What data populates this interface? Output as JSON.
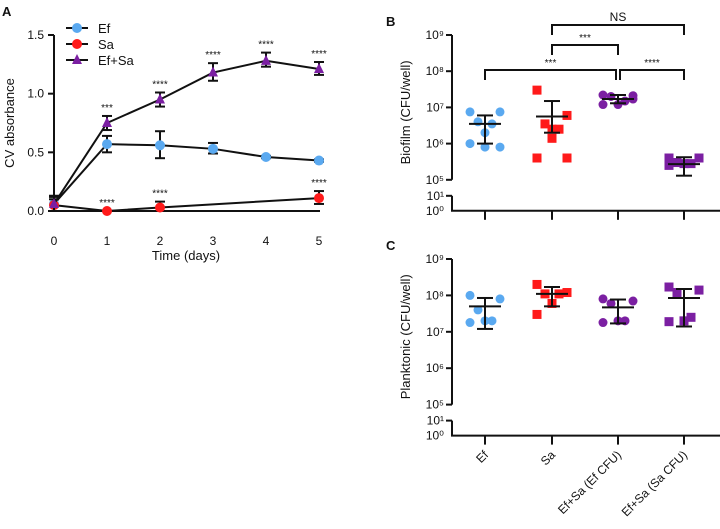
{
  "chart_data": [
    {
      "panel": "A",
      "type": "line",
      "xlabel": "Time (days)",
      "ylabel": "CV absorbance",
      "x": [
        0,
        1,
        2,
        3,
        4,
        5
      ],
      "ylim": [
        0,
        1.5
      ],
      "yticks": [
        "0.0",
        "0.5",
        "1.0",
        "1.5"
      ],
      "legend_position": "top-left",
      "series": [
        {
          "name": "Ef",
          "color": "#5aa9f0",
          "marker": "circle",
          "values": [
            0.06,
            0.57,
            0.56,
            0.53,
            0.46,
            0.43
          ],
          "err_low": [
            0.0,
            0.5,
            0.45,
            0.49,
            0.45,
            0.42
          ],
          "err_high": [
            0.12,
            0.64,
            0.68,
            0.58,
            0.47,
            0.44
          ],
          "annotations": [
            "",
            "",
            "",
            "",
            "",
            ""
          ]
        },
        {
          "name": "Sa",
          "color": "#ff1a1a",
          "marker": "circle",
          "values": [
            0.05,
            0.0,
            0.03,
            null,
            null,
            0.11
          ],
          "err_low": [
            0.0,
            0.0,
            0.0,
            null,
            null,
            0.06
          ],
          "err_high": [
            0.1,
            0.0,
            0.08,
            null,
            null,
            0.17
          ],
          "annotations": [
            "",
            "****",
            "****",
            "",
            "",
            "****"
          ]
        },
        {
          "name": "Ef+Sa",
          "color": "#7b1fa2",
          "marker": "triangle",
          "values": [
            0.06,
            0.75,
            0.95,
            1.18,
            1.28,
            1.21
          ],
          "err_low": [
            0.0,
            0.69,
            0.89,
            1.11,
            1.23,
            1.16
          ],
          "err_high": [
            0.13,
            0.81,
            1.01,
            1.26,
            1.35,
            1.27
          ],
          "annotations": [
            "",
            "***",
            "****",
            "****",
            "****",
            "****"
          ]
        }
      ]
    },
    {
      "panel": "B",
      "type": "scatter",
      "ylabel": "Biofilm (CFU/well)",
      "yscale": "log",
      "ylim": [
        1,
        1000000000
      ],
      "yticks": [
        "10⁰",
        "10¹",
        "10⁵",
        "10⁶",
        "10⁷",
        "10⁸",
        "10⁹"
      ],
      "categories": [
        "Ef",
        "Sa",
        "Ef+Sa (Ef CFU)",
        "Ef+Sa (Sa CFU)"
      ],
      "groups": [
        {
          "color": "#5aa9f0",
          "marker": "circle",
          "mean": 3500000,
          "err": [
            1000000,
            6000000
          ],
          "points": [
            7500000,
            7500000,
            4000000,
            3500000,
            2000000,
            1000000,
            800000,
            800000
          ]
        },
        {
          "color": "#ff1a1a",
          "marker": "square",
          "mean": 5600000,
          "err": [
            2000000,
            15000000
          ],
          "points": [
            30000000,
            6000000,
            3500000,
            2500000,
            1400000,
            400000,
            400000,
            2500000
          ]
        },
        {
          "color": "#7b1fa2",
          "marker": "circle",
          "mean": 17000000,
          "err": [
            13000000,
            22000000
          ],
          "points": [
            22000000,
            21000000,
            20000000,
            15000000,
            12000000,
            12000000,
            17000000
          ]
        },
        {
          "color": "#7b1fa2",
          "marker": "square",
          "mean": 270000,
          "err": [
            130000,
            420000
          ],
          "points": [
            400000,
            400000,
            300000,
            280000,
            280000,
            250000
          ]
        }
      ],
      "comparisons": [
        {
          "from": 1,
          "to": 3,
          "label": "NS"
        },
        {
          "from": 1,
          "to": 2,
          "label": "***"
        },
        {
          "from": 0,
          "to": 2,
          "label": "***"
        },
        {
          "from": 2,
          "to": 3,
          "label": "****"
        }
      ]
    },
    {
      "panel": "C",
      "type": "scatter",
      "ylabel": "Planktonic (CFU/well)",
      "yscale": "log",
      "ylim": [
        1,
        1000000000
      ],
      "yticks": [
        "10⁰",
        "10¹",
        "10⁵",
        "10⁶",
        "10⁷",
        "10⁸",
        "10⁹"
      ],
      "categories": [
        "Ef",
        "Sa",
        "Ef+Sa (Ef CFU)",
        "Ef+Sa (Sa CFU)"
      ],
      "groups": [
        {
          "color": "#5aa9f0",
          "marker": "circle",
          "mean": 50000000,
          "err": [
            12000000,
            85000000
          ],
          "points": [
            100000000,
            80000000,
            40000000,
            20000000,
            20000000,
            18000000
          ]
        },
        {
          "color": "#ff1a1a",
          "marker": "square",
          "mean": 110000000,
          "err": [
            50000000,
            170000000
          ],
          "points": [
            200000000,
            120000000,
            110000000,
            110000000,
            60000000,
            30000000
          ]
        },
        {
          "color": "#7b1fa2",
          "marker": "circle",
          "mean": 47000000,
          "err": [
            17000000,
            77000000
          ],
          "points": [
            80000000,
            70000000,
            60000000,
            20000000,
            20000000,
            18000000
          ]
        },
        {
          "color": "#7b1fa2",
          "marker": "square",
          "mean": 85000000,
          "err": [
            14000000,
            150000000
          ],
          "points": [
            170000000,
            140000000,
            120000000,
            25000000,
            20000000,
            19000000
          ]
        }
      ],
      "comparisons": []
    }
  ]
}
